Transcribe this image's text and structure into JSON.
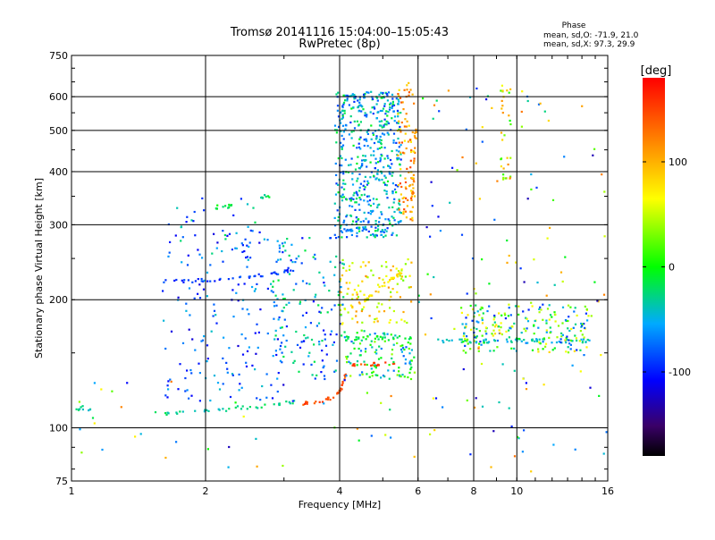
{
  "chart_data": {
    "type": "scatter",
    "title_line1": "Tromsø 20141116 15:04:00–15:05:43",
    "title_line2": "RwPretec (8p)",
    "stats": {
      "heading": "Phase",
      "line_o": "mean, sd,O: -71.9, 21.0",
      "line_x": "mean, sd,X:  97.3, 29.9"
    },
    "xlabel": "Frequency [MHz]",
    "ylabel": "Stationary phase Virtual Height [km]",
    "x_scale": "log",
    "y_scale": "log",
    "xlim": [
      1,
      16
    ],
    "ylim": [
      75,
      750
    ],
    "x_ticks": [
      {
        "value": 1,
        "label": "1"
      },
      {
        "value": 2,
        "label": "2"
      },
      {
        "value": 4,
        "label": "4"
      },
      {
        "value": 6,
        "label": "6"
      },
      {
        "value": 8,
        "label": "8"
      },
      {
        "value": 10,
        "label": "10"
      },
      {
        "value": 16,
        "label": "16"
      }
    ],
    "y_ticks": [
      {
        "value": 75,
        "label": "75"
      },
      {
        "value": 100,
        "label": "100"
      },
      {
        "value": 200,
        "label": "200"
      },
      {
        "value": 300,
        "label": "300"
      },
      {
        "value": 400,
        "label": "400"
      },
      {
        "value": 500,
        "label": "500"
      },
      {
        "value": 600,
        "label": "600"
      },
      {
        "value": 750,
        "label": "750"
      }
    ],
    "grid": true,
    "colorbar": {
      "label": "[deg]",
      "range": [
        -180,
        180
      ],
      "ticks": [
        {
          "value": 100,
          "label": "100"
        },
        {
          "value": 0,
          "label": "0"
        },
        {
          "value": -100,
          "label": "-100"
        }
      ]
    },
    "traces": [
      {
        "name": "",
        "points": [
          [
            1.5,
            108
          ],
          [
            1.7,
            108
          ],
          [
            1.9,
            109
          ],
          [
            2.1,
            110
          ],
          [
            2.3,
            111
          ],
          [
            2.5,
            112
          ],
          [
            2.8,
            113
          ],
          [
            3.0,
            114
          ],
          [
            3.3,
            116
          ]
        ],
        "phase": -30,
        "density": 40
      },
      {
        "name": "",
        "points": [
          [
            3.3,
            114
          ],
          [
            3.6,
            115
          ],
          [
            3.9,
            118
          ],
          [
            4.05,
            125
          ],
          [
            4.15,
            135
          ]
        ],
        "phase": 145,
        "density": 30
      },
      {
        "name": "",
        "points": [
          [
            1.0,
            108
          ],
          [
            1.05,
            112
          ],
          [
            1.1,
            110
          ]
        ],
        "phase": -30,
        "density": 10
      },
      {
        "name": "",
        "points": [
          [
            1.6,
            220
          ],
          [
            1.9,
            222
          ],
          [
            2.2,
            224
          ],
          [
            2.6,
            228
          ],
          [
            2.9,
            230
          ],
          [
            3.2,
            235
          ]
        ],
        "phase": -90,
        "density": 45
      },
      {
        "name": "",
        "points": [
          [
            4.0,
            290
          ],
          [
            4.3,
            292
          ],
          [
            4.7,
            295
          ]
        ],
        "phase": -70,
        "density": 20
      },
      {
        "name": "",
        "points": [
          [
            4.2,
            190
          ],
          [
            4.6,
            200
          ],
          [
            5.0,
            215
          ],
          [
            5.3,
            225
          ],
          [
            5.6,
            238
          ]
        ],
        "phase": 80,
        "density": 35
      },
      {
        "name": "",
        "points": [
          [
            4.1,
            162
          ],
          [
            4.6,
            163
          ],
          [
            5.2,
            163
          ],
          [
            5.8,
            163
          ]
        ],
        "phase": -10,
        "density": 25
      },
      {
        "name": "",
        "points": [
          [
            4.2,
            140
          ],
          [
            4.8,
            141
          ],
          [
            5.5,
            141
          ]
        ],
        "phase": 150,
        "density": 18
      },
      {
        "name": "",
        "points": [
          [
            5.8,
            320
          ],
          [
            5.85,
            380
          ],
          [
            5.9,
            450
          ],
          [
            5.95,
            520
          ]
        ],
        "phase": 110,
        "density": 25
      },
      {
        "name": "",
        "points": [
          [
            6.5,
            160
          ],
          [
            8,
            160
          ],
          [
            9.5,
            160
          ],
          [
            11,
            160
          ],
          [
            13,
            160
          ],
          [
            15,
            160
          ]
        ],
        "phase": -40,
        "density": 55
      },
      {
        "name": "",
        "points": [
          [
            2.1,
            330
          ],
          [
            2.3,
            332
          ]
        ],
        "phase": -10,
        "density": 12
      },
      {
        "name": "",
        "points": [
          [
            2.6,
            350
          ],
          [
            2.8,
            350
          ]
        ],
        "phase": -20,
        "density": 8
      }
    ],
    "clusters": [
      {
        "x": [
          3.9,
          5.5
        ],
        "y": [
          280,
          620
        ],
        "n": 520,
        "phase": -50,
        "spread": 45
      },
      {
        "x": [
          5.4,
          5.9
        ],
        "y": [
          300,
          650
        ],
        "n": 90,
        "phase": 110,
        "spread": 40
      },
      {
        "x": [
          2.8,
          4.1
        ],
        "y": [
          130,
          280
        ],
        "n": 160,
        "phase": -60,
        "spread": 50
      },
      {
        "x": [
          1.6,
          3.0
        ],
        "y": [
          115,
          290
        ],
        "n": 150,
        "phase": -80,
        "spread": 40
      },
      {
        "x": [
          4.0,
          5.8
        ],
        "y": [
          175,
          250
        ],
        "n": 110,
        "phase": 70,
        "spread": 45
      },
      {
        "x": [
          4.1,
          5.9
        ],
        "y": [
          130,
          170
        ],
        "n": 120,
        "phase": -20,
        "spread": 60
      },
      {
        "x": [
          7.5,
          14.5
        ],
        "y": [
          150,
          195
        ],
        "n": 220,
        "phase": -10,
        "spread": 90
      },
      {
        "x": [
          6.0,
          16.0
        ],
        "y": [
          78,
          650
        ],
        "n": 140,
        "phase": 0,
        "spread": 130
      },
      {
        "x": [
          1.0,
          6.0
        ],
        "y": [
          80,
          130
        ],
        "n": 40,
        "phase": 0,
        "spread": 130
      },
      {
        "x": [
          9.2,
          9.7
        ],
        "y": [
          380,
          640
        ],
        "n": 30,
        "phase": 60,
        "spread": 60
      },
      {
        "x": [
          1.6,
          2.6
        ],
        "y": [
          250,
          350
        ],
        "n": 40,
        "phase": -60,
        "spread": 50
      }
    ]
  }
}
